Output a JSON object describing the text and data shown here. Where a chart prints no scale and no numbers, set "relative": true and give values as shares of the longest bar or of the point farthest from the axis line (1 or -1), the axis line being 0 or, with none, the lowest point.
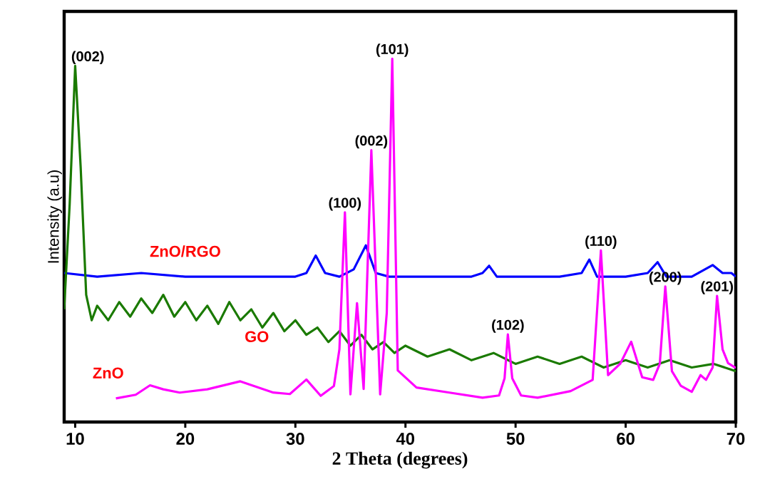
{
  "chart_data": {
    "type": "line",
    "xlabel": "2 Theta (degrees)",
    "ylabel": "Intensity (a.u)",
    "relative": true,
    "tick_labels": "x",
    "xlim": [
      9,
      70
    ],
    "xticks": [
      10,
      20,
      30,
      40,
      50,
      60,
      70
    ],
    "series": [
      {
        "name": "ZnO/RGO",
        "color": "#0000ff",
        "x": [
          9,
          12,
          16,
          20,
          25,
          30,
          31,
          31.85,
          32.7,
          34,
          35.3,
          36.4,
          37.3,
          38.5,
          42,
          46,
          47,
          47.6,
          48.3,
          50,
          54,
          56,
          56.7,
          57.4,
          60,
          62,
          62.9,
          63.7,
          66,
          67.9,
          68.8,
          69.6,
          70
        ],
        "values": [
          0.41,
          0.4,
          0.41,
          0.4,
          0.4,
          0.4,
          0.41,
          0.458,
          0.41,
          0.4,
          0.42,
          0.486,
          0.41,
          0.4,
          0.4,
          0.4,
          0.41,
          0.43,
          0.4,
          0.4,
          0.4,
          0.41,
          0.447,
          0.4,
          0.4,
          0.41,
          0.44,
          0.4,
          0.4,
          0.432,
          0.41,
          0.41,
          0.4
        ]
      },
      {
        "name": "GO",
        "color": "#1a7a00",
        "x": [
          9,
          9.5,
          10,
          10.5,
          11,
          11.5,
          12,
          13,
          14,
          15,
          16,
          17,
          18,
          19,
          20,
          21,
          22,
          23,
          24,
          25,
          26,
          27,
          28,
          29,
          30,
          31,
          32,
          33,
          34,
          35,
          36,
          37,
          38,
          39,
          40,
          42,
          44,
          46,
          48,
          50,
          52,
          54,
          56,
          58,
          60,
          62,
          64,
          66,
          68,
          70
        ],
        "values": [
          0.31,
          0.6,
          0.98,
          0.7,
          0.35,
          0.28,
          0.32,
          0.28,
          0.33,
          0.29,
          0.34,
          0.3,
          0.35,
          0.29,
          0.33,
          0.28,
          0.32,
          0.27,
          0.33,
          0.28,
          0.31,
          0.26,
          0.3,
          0.25,
          0.28,
          0.24,
          0.26,
          0.22,
          0.25,
          0.21,
          0.24,
          0.2,
          0.22,
          0.19,
          0.21,
          0.18,
          0.2,
          0.17,
          0.19,
          0.16,
          0.18,
          0.16,
          0.18,
          0.15,
          0.17,
          0.15,
          0.17,
          0.15,
          0.16,
          0.14
        ]
      },
      {
        "name": "ZnO",
        "color": "#ff00ff",
        "x": [
          13.7,
          15.5,
          16.8,
          18,
          19.5,
          22,
          25,
          28,
          29.5,
          31,
          32.3,
          33.5,
          34,
          34.5,
          35,
          35.6,
          36.2,
          36.9,
          37.7,
          38.3,
          38.8,
          39.3,
          41,
          44,
          47,
          48.5,
          49,
          49.3,
          49.7,
          50.5,
          52,
          55,
          57,
          57.75,
          58.4,
          59.5,
          60.5,
          61.5,
          62.5,
          63.1,
          63.6,
          64.2,
          65,
          66,
          66.8,
          67.3,
          67.9,
          68.3,
          68.8,
          69.3,
          70
        ],
        "values": [
          0.065,
          0.075,
          0.101,
          0.09,
          0.081,
          0.09,
          0.112,
          0.081,
          0.077,
          0.117,
          0.072,
          0.099,
          0.2,
          0.577,
          0.076,
          0.327,
          0.091,
          0.748,
          0.076,
          0.3,
          1,
          0.142,
          0.095,
          0.081,
          0.067,
          0.073,
          0.12,
          0.241,
          0.12,
          0.073,
          0.067,
          0.085,
          0.116,
          0.472,
          0.129,
          0.16,
          0.221,
          0.123,
          0.116,
          0.16,
          0.373,
          0.14,
          0.1,
          0.083,
          0.129,
          0.116,
          0.15,
          0.347,
          0.2,
          0.162,
          0.149
        ]
      }
    ],
    "annotations": [
      {
        "text": "(002)",
        "x": 10,
        "y": 0.98
      },
      {
        "text": "(100)",
        "x": 34.5,
        "y": 0.577
      },
      {
        "text": "(002)",
        "x": 36.9,
        "y": 0.748
      },
      {
        "text": "(101)",
        "x": 38.8,
        "y": 1
      },
      {
        "text": "(102)",
        "x": 49.3,
        "y": 0.241
      },
      {
        "text": "(110)",
        "x": 57.75,
        "y": 0.472
      },
      {
        "text": "(200)",
        "x": 63.6,
        "y": 0.373
      },
      {
        "text": "(201)",
        "x": 68.3,
        "y": 0.347
      }
    ]
  }
}
